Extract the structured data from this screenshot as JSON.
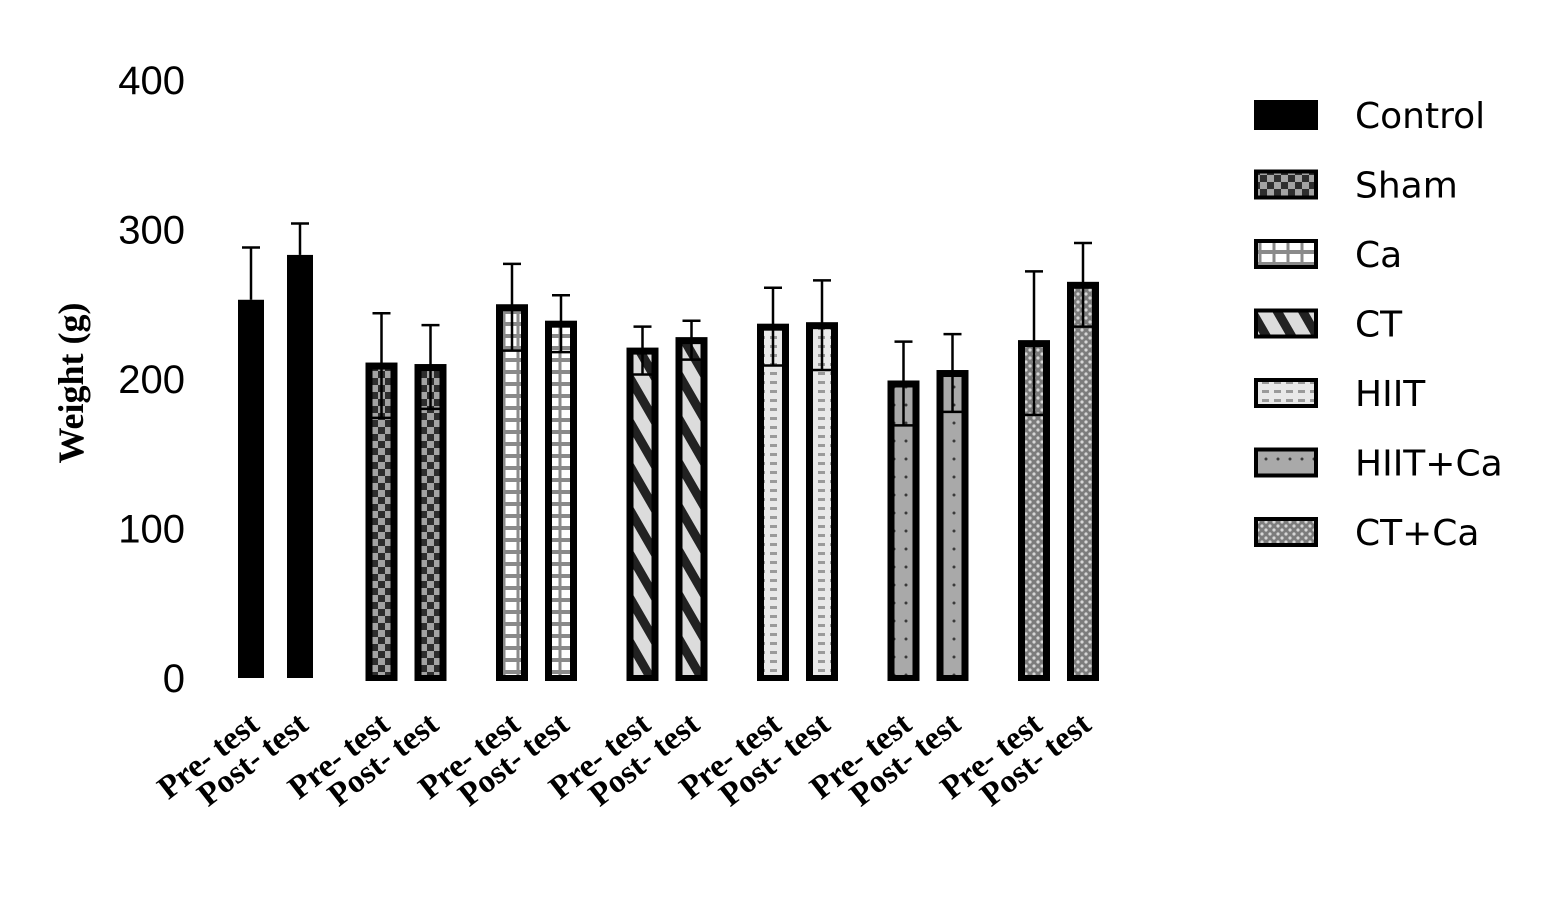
{
  "chart_data": {
    "type": "bar",
    "ylabel": "Weight (g)",
    "xlabel": "",
    "ylim": [
      0,
      400
    ],
    "yticks": [
      0,
      100,
      200,
      300,
      400
    ],
    "grid": false,
    "legend_position": "right",
    "groups": [
      {
        "name": "Control",
        "pattern": "solid",
        "bars": [
          {
            "label": "Pre- test",
            "value": 253,
            "error": 35
          },
          {
            "label": "Post- test",
            "value": 283,
            "error": 21
          }
        ]
      },
      {
        "name": "Sham",
        "pattern": "checker",
        "bars": [
          {
            "label": "Pre- test",
            "value": 209,
            "error": 35
          },
          {
            "label": "Post- test",
            "value": 208,
            "error": 28
          }
        ]
      },
      {
        "name": "Ca",
        "pattern": "brick",
        "bars": [
          {
            "label": "Pre- test",
            "value": 248,
            "error": 29
          },
          {
            "label": "Post- test",
            "value": 237,
            "error": 19
          }
        ]
      },
      {
        "name": "CT",
        "pattern": "diagonal",
        "bars": [
          {
            "label": "Pre- test",
            "value": 219,
            "error": 16
          },
          {
            "label": "Post- test",
            "value": 226,
            "error": 13
          }
        ]
      },
      {
        "name": "HIIT",
        "pattern": "dashes",
        "bars": [
          {
            "label": "Pre- test",
            "value": 235,
            "error": 26
          },
          {
            "label": "Post- test",
            "value": 236,
            "error": 30
          }
        ]
      },
      {
        "name": "HIIT+Ca",
        "pattern": "dots",
        "bars": [
          {
            "label": "Pre- test",
            "value": 197,
            "error": 28
          },
          {
            "label": "Post- test",
            "value": 204,
            "error": 26
          }
        ]
      },
      {
        "name": "CT+Ca",
        "pattern": "speckle",
        "bars": [
          {
            "label": "Pre- test",
            "value": 224,
            "error": 48
          },
          {
            "label": "Post- test",
            "value": 263,
            "error": 28
          }
        ]
      }
    ],
    "legend": [
      "Control",
      "Sham",
      "Ca",
      "CT",
      "HIIT",
      "HIIT+Ca",
      "CT+Ca"
    ],
    "colors": {
      "bar_edge": "#000000",
      "error_bar": "#000000"
    }
  }
}
